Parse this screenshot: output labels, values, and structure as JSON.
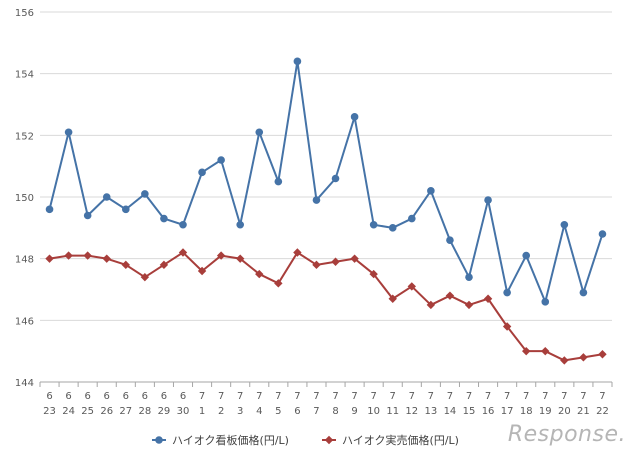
{
  "chart_data": {
    "type": "line",
    "categories": [
      [
        "6",
        "23"
      ],
      [
        "6",
        "24"
      ],
      [
        "6",
        "25"
      ],
      [
        "6",
        "26"
      ],
      [
        "6",
        "27"
      ],
      [
        "6",
        "28"
      ],
      [
        "6",
        "29"
      ],
      [
        "6",
        "30"
      ],
      [
        "7",
        "1"
      ],
      [
        "7",
        "2"
      ],
      [
        "7",
        "3"
      ],
      [
        "7",
        "4"
      ],
      [
        "7",
        "5"
      ],
      [
        "7",
        "6"
      ],
      [
        "7",
        "7"
      ],
      [
        "7",
        "8"
      ],
      [
        "7",
        "9"
      ],
      [
        "7",
        "10"
      ],
      [
        "7",
        "11"
      ],
      [
        "7",
        "12"
      ],
      [
        "7",
        "13"
      ],
      [
        "7",
        "14"
      ],
      [
        "7",
        "15"
      ],
      [
        "7",
        "16"
      ],
      [
        "7",
        "17"
      ],
      [
        "7",
        "18"
      ],
      [
        "7",
        "19"
      ],
      [
        "7",
        "20"
      ],
      [
        "7",
        "21"
      ],
      [
        "7",
        "22"
      ]
    ],
    "series": [
      {
        "name": "ハイオク看板価格(円/L)",
        "color": "#4573a7",
        "marker": "circle",
        "values": [
          149.6,
          152.1,
          149.4,
          150.0,
          149.6,
          150.1,
          149.3,
          149.1,
          150.8,
          151.2,
          149.1,
          152.1,
          150.5,
          154.4,
          149.9,
          150.6,
          152.6,
          149.1,
          149.0,
          149.3,
          150.2,
          148.6,
          147.4,
          149.9,
          146.9,
          148.1,
          146.6,
          149.1,
          146.9,
          148.8
        ]
      },
      {
        "name": "ハイオク実売価格(円/L)",
        "color": "#a83e3b",
        "marker": "diamond",
        "values": [
          148.0,
          148.1,
          148.1,
          148.0,
          147.8,
          147.4,
          147.8,
          148.2,
          147.6,
          148.1,
          148.0,
          147.5,
          147.2,
          148.2,
          147.8,
          147.9,
          148.0,
          147.5,
          146.7,
          147.1,
          146.5,
          146.8,
          146.5,
          146.7,
          145.8,
          145.0,
          145.0,
          144.7,
          144.8,
          144.9
        ]
      }
    ],
    "ylim": [
      144,
      156
    ],
    "yticks": [
      "144",
      "146",
      "148",
      "150",
      "152",
      "154",
      "156"
    ],
    "grid": true,
    "legend": "bottom",
    "title": "",
    "xlabel": "",
    "ylabel": ""
  },
  "watermark": "Response."
}
